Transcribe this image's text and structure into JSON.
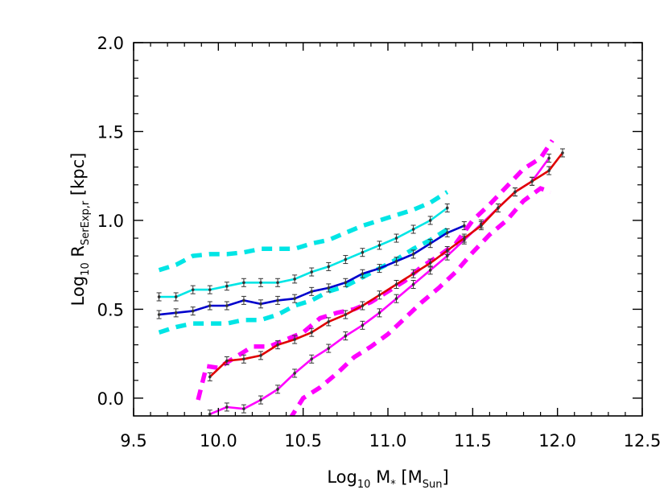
{
  "chart_data": {
    "type": "line",
    "xlabel": {
      "main": "Log",
      "sub1": "10",
      "mid": " M",
      "star": "*",
      "after": " [M",
      "sub2": "Sun",
      "end": "]"
    },
    "ylabel": {
      "main": "Log",
      "sub1": "10",
      "mid": " R",
      "sub2": "SerExp,r",
      "end": "  [kpc]"
    },
    "xlim": [
      9.5,
      12.5
    ],
    "ylim": [
      -0.1,
      2.0
    ],
    "x_ticks": [
      "9.5",
      "10.0",
      "10.5",
      "11.0",
      "11.5",
      "12.0",
      "12.5"
    ],
    "y_ticks": [
      "0.0",
      "0.5",
      "1.0",
      "1.5",
      "2.0"
    ],
    "grid": false,
    "series": [
      {
        "color": "#00e5e5",
        "style": "solid",
        "errorbars": true,
        "x": [
          9.65,
          9.75,
          9.85,
          9.95,
          10.05,
          10.15,
          10.25,
          10.35,
          10.45,
          10.55,
          10.65,
          10.75,
          10.85,
          10.95,
          11.05,
          11.15,
          11.25,
          11.35
        ],
        "y": [
          0.57,
          0.57,
          0.61,
          0.61,
          0.63,
          0.65,
          0.65,
          0.65,
          0.67,
          0.71,
          0.74,
          0.78,
          0.82,
          0.86,
          0.9,
          0.95,
          1.0,
          1.07
        ]
      },
      {
        "color": "#00e5e5",
        "style": "dashed",
        "errorbars": false,
        "x": [
          9.65,
          9.75,
          9.85,
          9.95,
          10.05,
          10.15,
          10.25,
          10.35,
          10.45,
          10.55,
          10.65,
          10.75,
          10.85,
          10.95,
          11.05,
          11.15,
          11.25,
          11.35
        ],
        "y": [
          0.72,
          0.75,
          0.8,
          0.81,
          0.81,
          0.82,
          0.84,
          0.84,
          0.84,
          0.87,
          0.89,
          0.93,
          0.97,
          1.0,
          1.03,
          1.06,
          1.1,
          1.16
        ]
      },
      {
        "color": "#00e5e5",
        "style": "dashed",
        "errorbars": false,
        "x": [
          9.65,
          9.75,
          9.85,
          9.95,
          10.05,
          10.15,
          10.25,
          10.35,
          10.45,
          10.55,
          10.65,
          10.75,
          10.85,
          10.95,
          11.05,
          11.15,
          11.25,
          11.35
        ],
        "y": [
          0.37,
          0.4,
          0.42,
          0.42,
          0.42,
          0.44,
          0.44,
          0.47,
          0.52,
          0.55,
          0.6,
          0.63,
          0.68,
          0.73,
          0.78,
          0.84,
          0.89,
          0.95
        ]
      },
      {
        "color": "#0000cc",
        "style": "solid",
        "errorbars": true,
        "x": [
          9.65,
          9.75,
          9.85,
          9.95,
          10.05,
          10.15,
          10.25,
          10.35,
          10.45,
          10.55,
          10.65,
          10.75,
          10.85,
          10.95,
          11.05,
          11.15,
          11.25,
          11.35,
          11.45
        ],
        "y": [
          0.47,
          0.48,
          0.49,
          0.52,
          0.52,
          0.55,
          0.53,
          0.55,
          0.56,
          0.6,
          0.62,
          0.65,
          0.7,
          0.73,
          0.77,
          0.81,
          0.87,
          0.93,
          0.97
        ]
      },
      {
        "color": "#ff00ff",
        "style": "solid",
        "errorbars": true,
        "x": [
          9.95,
          10.05,
          10.15,
          10.25,
          10.35,
          10.45,
          10.55,
          10.65,
          10.75,
          10.85,
          10.95,
          11.05,
          11.15,
          11.25,
          11.35,
          11.45,
          11.55,
          11.65,
          11.75,
          11.85,
          11.95
        ],
        "y": [
          -0.09,
          -0.05,
          -0.06,
          -0.01,
          0.05,
          0.14,
          0.22,
          0.28,
          0.35,
          0.41,
          0.48,
          0.56,
          0.64,
          0.72,
          0.8,
          0.89,
          0.98,
          1.07,
          1.16,
          1.22,
          1.35
        ]
      },
      {
        "color": "#ff00ff",
        "style": "dashed",
        "errorbars": false,
        "x": [
          9.88,
          9.93,
          10.0,
          10.1,
          10.2,
          10.3,
          10.4,
          10.5,
          10.6,
          10.7,
          10.8,
          10.9,
          11.0,
          11.1,
          11.2,
          11.3,
          11.4,
          11.5,
          11.6,
          11.7,
          11.8,
          11.9,
          11.97
        ],
        "y": [
          -0.01,
          0.18,
          0.17,
          0.23,
          0.29,
          0.29,
          0.33,
          0.37,
          0.45,
          0.48,
          0.5,
          0.54,
          0.6,
          0.66,
          0.74,
          0.8,
          0.87,
          1.0,
          1.09,
          1.19,
          1.29,
          1.35,
          1.45
        ]
      },
      {
        "color": "#ff00ff",
        "style": "dashed",
        "errorbars": false,
        "x": [
          10.42,
          10.5,
          10.6,
          10.7,
          10.8,
          10.9,
          11.0,
          11.1,
          11.2,
          11.3,
          11.4,
          11.5,
          11.6,
          11.7,
          11.8,
          11.9,
          11.96
        ],
        "y": [
          -0.12,
          0.0,
          0.06,
          0.14,
          0.23,
          0.29,
          0.36,
          0.45,
          0.54,
          0.62,
          0.71,
          0.82,
          0.92,
          1.0,
          1.11,
          1.18,
          1.16
        ]
      },
      {
        "color": "#e00000",
        "style": "solid",
        "errorbars": true,
        "x": [
          9.95,
          10.05,
          10.15,
          10.25,
          10.35,
          10.45,
          10.55,
          10.65,
          10.75,
          10.85,
          10.95,
          11.05,
          11.15,
          11.25,
          11.35,
          11.45,
          11.55,
          11.65,
          11.75,
          11.85,
          11.95,
          12.03
        ],
        "y": [
          0.12,
          0.21,
          0.22,
          0.24,
          0.3,
          0.33,
          0.37,
          0.43,
          0.47,
          0.52,
          0.58,
          0.64,
          0.7,
          0.76,
          0.83,
          0.9,
          0.97,
          1.07,
          1.16,
          1.22,
          1.28,
          1.38
        ]
      }
    ]
  }
}
